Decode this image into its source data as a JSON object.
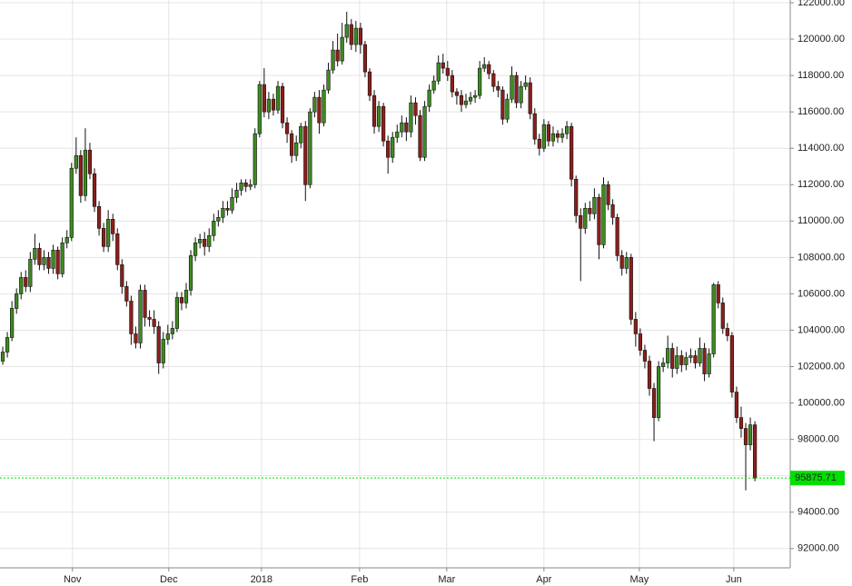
{
  "chart_data": {
    "type": "candlestick",
    "open": [
      102300,
      102800,
      103600,
      105200,
      106000,
      106900,
      106400,
      107900,
      108500,
      107600,
      108000,
      107400,
      108400,
      107100,
      108800,
      109100,
      112900,
      113600,
      111400,
      113900,
      112600,
      110800,
      109600,
      108600,
      110100,
      109300,
      107600,
      106400,
      105600,
      103800,
      103300,
      106200,
      104700,
      104600,
      104200,
      102200,
      103500,
      103800,
      104100,
      105800,
      105500,
      106200,
      108100,
      108800,
      109000,
      108600,
      109200,
      110000,
      110200,
      110700,
      110600,
      111300,
      111700,
      112100,
      111900,
      112000,
      114800,
      117500,
      116000,
      116700,
      116100,
      117400,
      115400,
      114800,
      113600,
      114300,
      115200,
      112000,
      116000,
      116800,
      115400,
      117200,
      118300,
      119400,
      118800,
      120100,
      120800,
      119700,
      120600,
      119700,
      118200,
      116900,
      115200,
      116300,
      114400,
      113500,
      114600,
      114900,
      115400,
      114900,
      116500,
      115800,
      113500,
      116300,
      117200,
      117700,
      118700,
      118400,
      118000,
      117100,
      116900,
      116400,
      116600,
      116800,
      116900,
      118400,
      118600,
      118100,
      117400,
      117200,
      115600,
      116700,
      118000,
      116500,
      117400,
      117600,
      115900,
      114500,
      114000,
      115300,
      114400,
      114800,
      114600,
      114800,
      115200,
      112300,
      110300,
      109600,
      110700,
      110400,
      111300,
      108700,
      112000,
      110900,
      110200,
      108100,
      107400,
      108000,
      104600,
      103800,
      102900,
      102300,
      100800,
      99200,
      102000,
      102200,
      103000,
      101900,
      102600,
      102100,
      102500,
      102600,
      102200,
      103000,
      101600,
      102700,
      106500,
      105500,
      104100,
      103700,
      100600,
      99200,
      98600,
      97700,
      98800
    ],
    "high": [
      103100,
      103900,
      105600,
      106300,
      107200,
      107300,
      108300,
      109300,
      108800,
      108400,
      108300,
      108700,
      108600,
      109100,
      109500,
      113200,
      114600,
      113900,
      115100,
      114300,
      112900,
      111100,
      109900,
      110600,
      110400,
      109600,
      107900,
      106700,
      105900,
      104200,
      106500,
      106500,
      105100,
      105100,
      104500,
      103900,
      104300,
      104500,
      106100,
      106100,
      106600,
      108400,
      109100,
      109300,
      109400,
      109600,
      110400,
      110600,
      111100,
      111100,
      111800,
      112100,
      112300,
      112300,
      112300,
      115100,
      117700,
      118400,
      117100,
      117000,
      117700,
      117600,
      115700,
      115000,
      114700,
      115400,
      115500,
      116200,
      117100,
      117200,
      117500,
      118700,
      119900,
      120300,
      120900,
      121500,
      121100,
      121000,
      120900,
      119900,
      118400,
      117200,
      116600,
      116500,
      114700,
      114900,
      115300,
      115800,
      115700,
      116900,
      116800,
      116100,
      116600,
      117500,
      118000,
      119100,
      119200,
      118800,
      118300,
      117300,
      117200,
      117000,
      117100,
      117200,
      118800,
      119000,
      118800,
      118300,
      117700,
      117400,
      117000,
      118500,
      118200,
      117700,
      118000,
      117900,
      116200,
      114800,
      115600,
      115500,
      115200,
      115000,
      115100,
      115500,
      115400,
      112500,
      110700,
      111000,
      111100,
      111800,
      111500,
      112400,
      112200,
      111200,
      110400,
      108400,
      108300,
      108200,
      105000,
      104100,
      103200,
      102600,
      101100,
      102300,
      102500,
      103700,
      103300,
      103100,
      102900,
      102800,
      103000,
      102900,
      103600,
      103300,
      103000,
      106600,
      106700,
      105800,
      104400,
      103900,
      100900,
      99800,
      98900,
      99200,
      99000
    ],
    "low": [
      102100,
      102500,
      103400,
      104900,
      105700,
      106100,
      106100,
      107600,
      107300,
      107300,
      107100,
      107100,
      106800,
      106900,
      108500,
      108900,
      112600,
      111000,
      111100,
      112300,
      110500,
      109200,
      108300,
      108300,
      108900,
      107300,
      106000,
      105300,
      103200,
      103000,
      103000,
      104200,
      104200,
      103800,
      101600,
      101900,
      103200,
      103500,
      103900,
      105100,
      105200,
      105900,
      107800,
      108500,
      108100,
      108300,
      108900,
      109700,
      109900,
      110300,
      110400,
      111000,
      111400,
      111600,
      111700,
      111800,
      114600,
      115700,
      115600,
      115800,
      115900,
      115100,
      114300,
      113200,
      113300,
      114000,
      111100,
      111800,
      115700,
      114800,
      115200,
      117000,
      118100,
      118500,
      118600,
      119800,
      119400,
      119300,
      119200,
      117900,
      116600,
      114800,
      114900,
      114100,
      112600,
      113200,
      114300,
      114600,
      114400,
      114600,
      115300,
      113300,
      113300,
      116000,
      117000,
      117500,
      118100,
      117700,
      116800,
      116400,
      116000,
      116200,
      116400,
      116500,
      116700,
      118200,
      117800,
      117100,
      116800,
      115300,
      115400,
      116500,
      116200,
      116200,
      117200,
      115600,
      114200,
      113600,
      113800,
      114100,
      114100,
      114300,
      114300,
      114500,
      111900,
      109900,
      106700,
      109300,
      110000,
      110100,
      107900,
      108500,
      110600,
      109800,
      107800,
      107000,
      107100,
      104300,
      103100,
      102600,
      101900,
      100400,
      97900,
      99000,
      101700,
      101900,
      101400,
      101600,
      101700,
      101800,
      102200,
      101900,
      102000,
      101200,
      101400,
      102500,
      105200,
      103800,
      103400,
      100300,
      98900,
      98100,
      95200,
      97400,
      95700
    ],
    "close": [
      102800,
      103600,
      105200,
      106000,
      106900,
      106400,
      107900,
      108500,
      107600,
      108000,
      107400,
      108400,
      107100,
      108800,
      109100,
      112900,
      113600,
      111400,
      113900,
      112600,
      110800,
      109600,
      108600,
      110100,
      109300,
      107600,
      106400,
      105600,
      103800,
      103300,
      106200,
      104700,
      104600,
      104200,
      102200,
      103500,
      103800,
      104100,
      105800,
      105500,
      106200,
      108100,
      108800,
      109000,
      108600,
      109200,
      110000,
      110200,
      110700,
      110600,
      111300,
      111700,
      112100,
      111900,
      112000,
      114800,
      117500,
      116000,
      116700,
      116100,
      117400,
      115400,
      114800,
      113600,
      114300,
      115200,
      112000,
      116000,
      116800,
      115400,
      117200,
      118300,
      119400,
      118800,
      120100,
      120800,
      119700,
      120600,
      119700,
      118200,
      116900,
      115200,
      116300,
      114400,
      113500,
      114600,
      114900,
      115400,
      114900,
      116500,
      115800,
      113500,
      116300,
      117200,
      117700,
      118700,
      118400,
      118000,
      117100,
      116900,
      116400,
      116600,
      116800,
      116900,
      118400,
      118600,
      118100,
      117400,
      117200,
      115600,
      116700,
      118000,
      116500,
      117400,
      117600,
      115900,
      114500,
      114000,
      115300,
      114400,
      114800,
      114600,
      114800,
      115200,
      112300,
      110300,
      109600,
      110700,
      110400,
      111300,
      108700,
      112000,
      110900,
      110200,
      108100,
      107400,
      108000,
      104600,
      103800,
      102900,
      102300,
      100800,
      99200,
      102000,
      102200,
      103000,
      101900,
      102600,
      102100,
      102500,
      102600,
      102200,
      103000,
      101600,
      102700,
      106500,
      105500,
      104100,
      103700,
      100600,
      99200,
      98600,
      97700,
      98800,
      95875.71
    ],
    "up_color": "#3d8b1f",
    "down_color": "#8b1f1a",
    "last_price": 95875.71,
    "last_price_color": "#00e000",
    "xlim": [
      -0.6,
      171.7
    ],
    "xticks": [
      {
        "value": 15.2,
        "label": "Nov"
      },
      {
        "value": 36.2,
        "label": "Dec"
      },
      {
        "value": 56.4,
        "label": "2018"
      },
      {
        "value": 77.8,
        "label": "Feb"
      },
      {
        "value": 96.8,
        "label": "Mar"
      },
      {
        "value": 118.0,
        "label": "Apr"
      },
      {
        "value": 138.8,
        "label": "May"
      },
      {
        "value": 159.4,
        "label": "Jun"
      }
    ],
    "ylim": [
      90940,
      122150
    ],
    "yticks": [
      {
        "value": 92000,
        "label": "92000.00"
      },
      {
        "value": 94000,
        "label": "94000.00"
      },
      {
        "value": 96000,
        "label": "96000.00"
      },
      {
        "value": 98000,
        "label": "98000.00"
      },
      {
        "value": 100000,
        "label": "100000.00"
      },
      {
        "value": 102000,
        "label": "102000.00"
      },
      {
        "value": 104000,
        "label": "104000.00"
      },
      {
        "value": 106000,
        "label": "106000.00"
      },
      {
        "value": 108000,
        "label": "108000.00"
      },
      {
        "value": 110000,
        "label": "110000.00"
      },
      {
        "value": 112000,
        "label": "112000.00"
      },
      {
        "value": 114000,
        "label": "114000.00"
      },
      {
        "value": 116000,
        "label": "116000.00"
      },
      {
        "value": 118000,
        "label": "118000.00"
      },
      {
        "value": 120000,
        "label": "120000.00"
      },
      {
        "value": 122000,
        "label": "122000.00"
      }
    ],
    "grid": true
  }
}
